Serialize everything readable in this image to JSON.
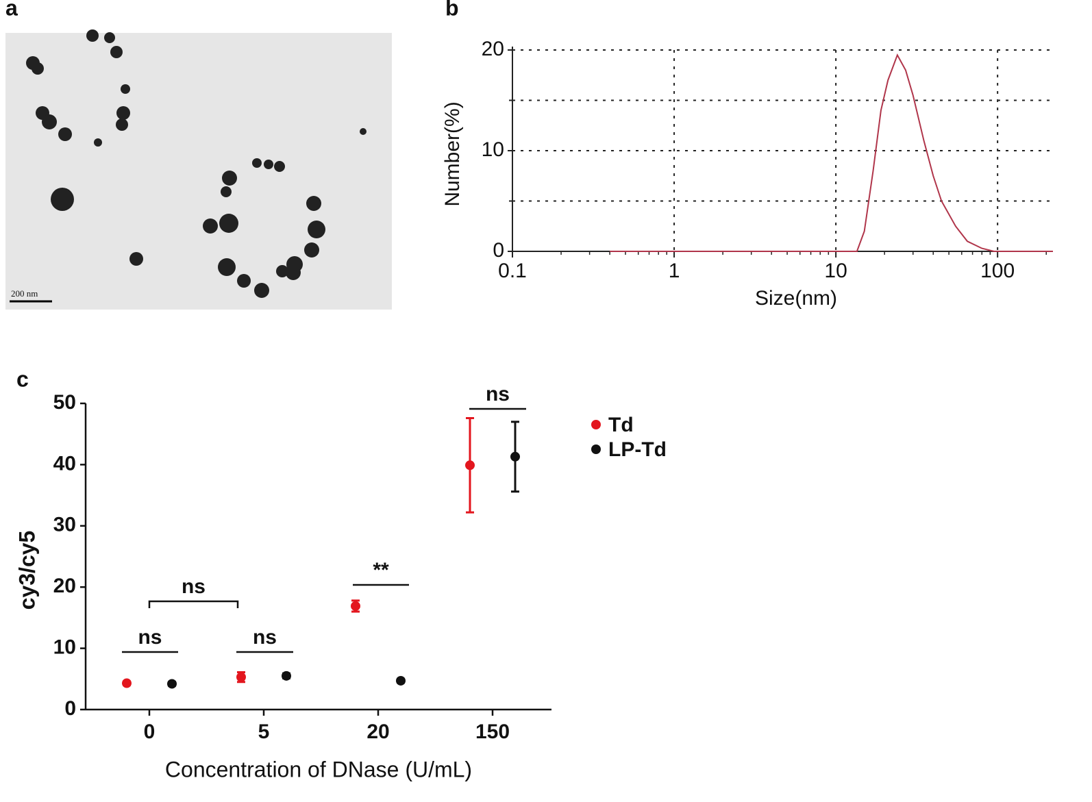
{
  "image": {
    "label": "a",
    "scale_bar": "200 nm"
  },
  "chart_data": [
    {
      "type": "line",
      "label": "b",
      "x_label": "Size(nm)",
      "y_label": "Number(%)",
      "x": [
        0.4,
        13.5,
        15,
        17,
        19,
        21,
        24,
        27,
        30,
        35,
        40,
        45,
        55,
        65,
        80,
        95,
        220
      ],
      "series": [
        {
          "name": "Number",
          "color": "#b0354a",
          "values": [
            0,
            0,
            2,
            8,
            14,
            17,
            19.5,
            18,
            15.5,
            11,
            7.5,
            5,
            2.5,
            1,
            0.3,
            0,
            0
          ]
        }
      ],
      "xlim": [
        0.1,
        220
      ],
      "xticks": [
        0.1,
        1,
        10,
        100
      ],
      "log_x": true,
      "ylim": [
        0,
        20
      ],
      "yticks": [
        0,
        10,
        20
      ],
      "y_minor_ticks": [
        5,
        15
      ],
      "grid": true
    },
    {
      "type": "scatter",
      "label": "c",
      "x_label": "Concentration of DNase (U/mL)",
      "y_label": "cy3/cy5",
      "categories": [
        "0",
        "5",
        "20",
        "150"
      ],
      "series": [
        {
          "name": "Td",
          "color": "#e3161e",
          "values": [
            4.3,
            5.3,
            16.9,
            39.9
          ],
          "errors": [
            0.3,
            0.8,
            0.9,
            7.7
          ]
        },
        {
          "name": "LP-Td",
          "color": "#111111",
          "values": [
            4.2,
            5.5,
            4.7,
            41.3
          ],
          "errors": [
            0.3,
            0.4,
            0.3,
            5.7
          ]
        }
      ],
      "ylim": [
        0,
        50
      ],
      "yticks": [
        0,
        10,
        20,
        30,
        40,
        50
      ],
      "annotations": [
        "ns",
        "ns",
        "ns",
        "**",
        "ns"
      ]
    }
  ]
}
